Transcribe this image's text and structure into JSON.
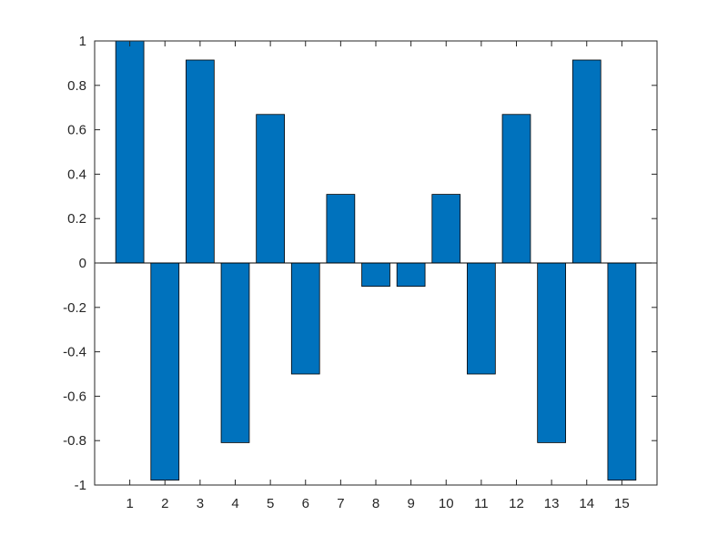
{
  "chart_data": {
    "type": "bar",
    "title": "",
    "xlabel": "",
    "ylabel": "",
    "categories": [
      "1",
      "2",
      "3",
      "4",
      "5",
      "6",
      "7",
      "8",
      "9",
      "10",
      "11",
      "12",
      "13",
      "14",
      "15"
    ],
    "values": [
      1.0,
      -0.978,
      0.914,
      -0.809,
      0.669,
      -0.5,
      0.309,
      -0.105,
      -0.105,
      0.309,
      -0.5,
      0.669,
      -0.809,
      0.914,
      -0.978
    ],
    "xlim": [
      0,
      16
    ],
    "ylim": [
      -1,
      1
    ],
    "yticks": [
      -1,
      -0.8,
      -0.6,
      -0.4,
      -0.2,
      0,
      0.2,
      0.4,
      0.6,
      0.8,
      1
    ],
    "ytick_labels": [
      "-1",
      "-0.8",
      "-0.6",
      "-0.4",
      "-0.2",
      "0",
      "0.2",
      "0.4",
      "0.6",
      "0.8",
      "1"
    ],
    "grid": false,
    "legend": "none",
    "colors": {
      "bar_fill": "#0072BD",
      "bar_edge": "#000000",
      "axis": "#262626",
      "background": "#ffffff"
    }
  }
}
